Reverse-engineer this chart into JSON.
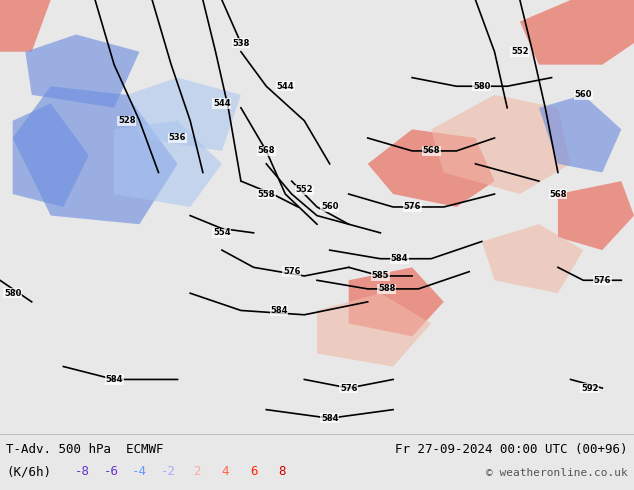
{
  "title_left": "T-Adv. 500 hPa  ECMWF",
  "title_right": "Fr 27-09-2024 00:00 UTC (00+96)",
  "subtitle_left": "(K/6h)",
  "copyright": "© weatheronline.co.uk",
  "legend_values": [
    "-8",
    "-6",
    "-4",
    "-2",
    "2",
    "4",
    "6",
    "8"
  ],
  "legend_colors": [
    "#6633cc",
    "#6633cc",
    "#6699ff",
    "#aaaaff",
    "#ffaaaa",
    "#ff6644",
    "#ff2200",
    "#cc0000"
  ],
  "bg_color": "#e8e8e8",
  "border_color": "#cc0000",
  "fig_width": 6.34,
  "fig_height": 4.9,
  "dpi": 100
}
